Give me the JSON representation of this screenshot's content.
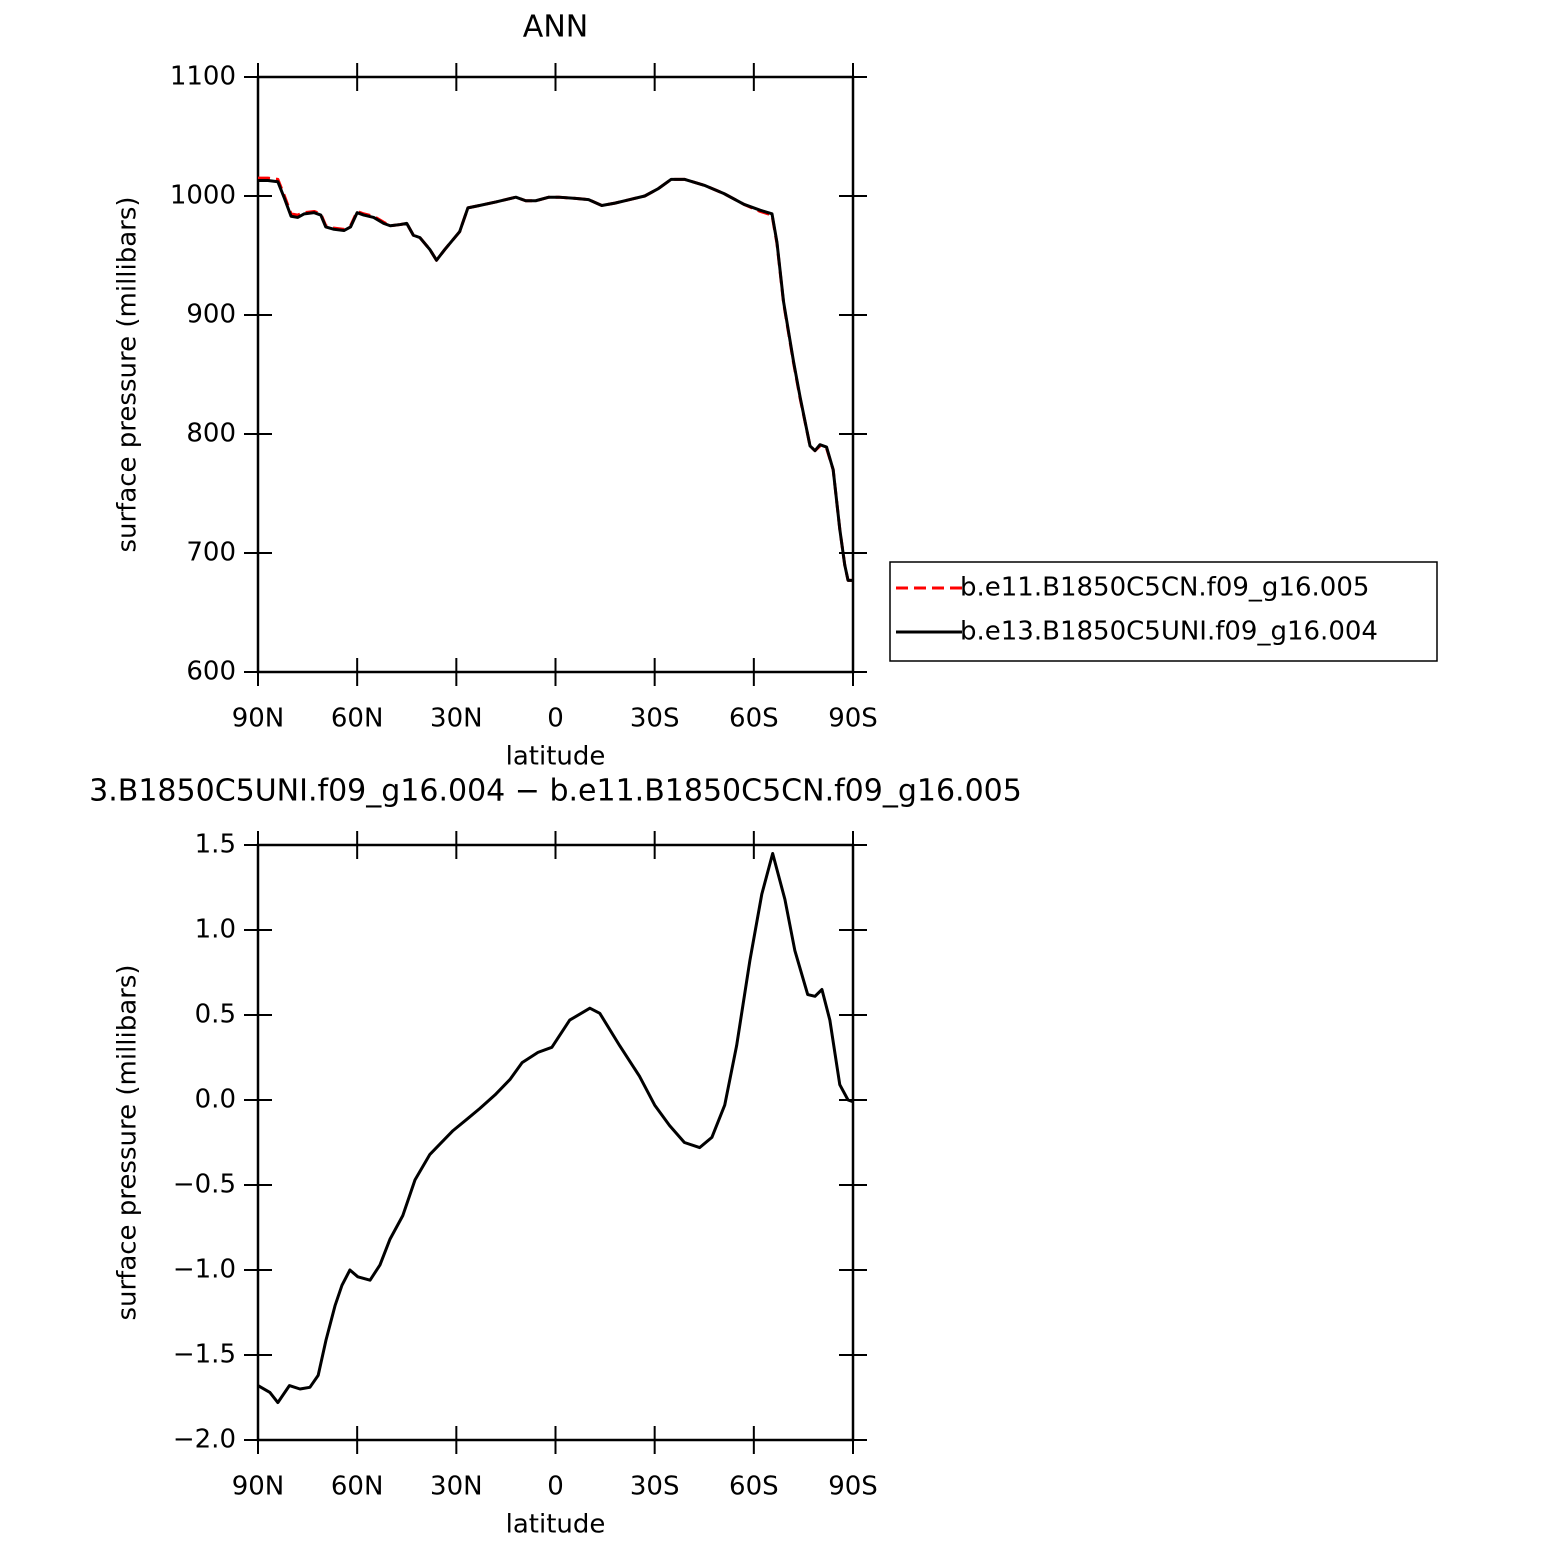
{
  "chart_data": [
    {
      "type": "line",
      "title": "ANN",
      "xlabel": "latitude",
      "ylabel": "surface pressure (millibars)",
      "x": [
        90,
        87,
        84,
        82,
        80,
        78,
        76,
        73,
        71,
        69.5,
        67,
        64,
        62,
        60,
        58,
        55,
        52,
        50,
        47,
        45,
        43,
        41,
        38,
        36,
        33.5,
        29,
        26.5,
        23,
        18,
        15,
        12,
        9,
        6,
        2,
        -1,
        -6,
        -10,
        -14,
        -18,
        -22.5,
        -27,
        -31,
        -35,
        -39,
        -45,
        -51,
        -57,
        -62,
        -65.5,
        -67,
        -69,
        -72,
        -74,
        -77,
        -78.5,
        -80,
        -82,
        -84,
        -86,
        -87.5,
        -88.5,
        -90
      ],
      "series": [
        {
          "name": "b.e11.B1850C5CN.f09_g16.005",
          "color": "#ff0000",
          "dash": true,
          "values": [
            1015,
            1015,
            1014,
            1000,
            985,
            984,
            986,
            987,
            985,
            975,
            973,
            972,
            975,
            987,
            985,
            983,
            978,
            975,
            976,
            977,
            967,
            965,
            955,
            946,
            955,
            970,
            990,
            992,
            995,
            997,
            999,
            996,
            996,
            999,
            999,
            998,
            997,
            992,
            994,
            997,
            1000,
            1006,
            1014,
            1014,
            1009,
            1002,
            993,
            987,
            984,
            960,
            910,
            860,
            830,
            790,
            786,
            790,
            788,
            770,
            720,
            690,
            677,
            677
          ]
        },
        {
          "name": "b.e13.B1850C5UNI.f09_g16.004",
          "color": "#000000",
          "dash": false,
          "values": [
            1013,
            1013,
            1012,
            998,
            983,
            982,
            985,
            986,
            984,
            974,
            972,
            971,
            974,
            986,
            984,
            982,
            977,
            975,
            976,
            977,
            967,
            965,
            955,
            946,
            955,
            970,
            990,
            992,
            995,
            997,
            999,
            996,
            996,
            999,
            999,
            998,
            997,
            992,
            994,
            997,
            1000,
            1006,
            1014,
            1014,
            1009,
            1002,
            993,
            988,
            985,
            961,
            911,
            861,
            831,
            790,
            786,
            791,
            789,
            770,
            720,
            690,
            677,
            677
          ]
        }
      ],
      "xlim": [
        90,
        -90
      ],
      "xticks": [
        {
          "value": 90,
          "label": "90N"
        },
        {
          "value": 60,
          "label": "60N"
        },
        {
          "value": 30,
          "label": "30N"
        },
        0,
        {
          "value": -30,
          "label": "30S"
        },
        {
          "value": -60,
          "label": "60S"
        },
        {
          "value": -90,
          "label": "90S"
        }
      ],
      "ylim": [
        600,
        1100
      ],
      "yticks": [
        600,
        700,
        800,
        900,
        1000,
        1100
      ],
      "legend_position": "right"
    },
    {
      "type": "line",
      "title": "3.B1850C5UNI.f09_g16.004 − b.e11.B1850C5CN.f09_g16.005",
      "xlabel": "latitude",
      "ylabel": "surface pressure (millibars)",
      "x": [
        90,
        86.4,
        84,
        80.5,
        77.3,
        74.3,
        71.8,
        69.4,
        66.7,
        64.6,
        62.2,
        59.8,
        56.1,
        53.1,
        50.1,
        46.2,
        42.5,
        38,
        35,
        31,
        26.6,
        22.9,
        18.3,
        13.8,
        10.1,
        5.3,
        1.1,
        -4.3,
        -10.4,
        -13.4,
        -19.4,
        -25.4,
        -30,
        -34.5,
        -39,
        -43.6,
        -47.3,
        -51.2,
        -54.8,
        -58.8,
        -62.4,
        -65.7,
        -69.4,
        -72.4,
        -76.3,
        -78.5,
        -80.6,
        -83,
        -86,
        -88.5,
        -90
      ],
      "values": [
        -1.68,
        -1.72,
        -1.78,
        -1.68,
        -1.7,
        -1.69,
        -1.62,
        -1.41,
        -1.21,
        -1.09,
        -1.0,
        -1.04,
        -1.06,
        -0.97,
        -0.82,
        -0.68,
        -0.47,
        -0.32,
        -0.26,
        -0.18,
        -0.11,
        -0.05,
        0.03,
        0.12,
        0.22,
        0.28,
        0.31,
        0.47,
        0.54,
        0.51,
        0.32,
        0.14,
        -0.03,
        -0.15,
        -0.25,
        -0.28,
        -0.22,
        -0.03,
        0.32,
        0.82,
        1.21,
        1.45,
        1.18,
        0.88,
        0.62,
        0.61,
        0.65,
        0.47,
        0.09,
        0.0,
        -0.01
      ],
      "color": "#000000",
      "xlim": [
        90,
        -90
      ],
      "xticks": [
        {
          "value": 90,
          "label": "90N"
        },
        {
          "value": 60,
          "label": "60N"
        },
        {
          "value": 30,
          "label": "30N"
        },
        0,
        {
          "value": -30,
          "label": "30S"
        },
        {
          "value": -60,
          "label": "60S"
        },
        {
          "value": -90,
          "label": "90S"
        }
      ],
      "ylim": [
        -2.0,
        1.5
      ],
      "yticks": [
        {
          "value": -2.0,
          "label": "−2.0"
        },
        {
          "value": -1.5,
          "label": "−1.5"
        },
        {
          "value": -1.0,
          "label": "−1.0"
        },
        {
          "value": -0.5,
          "label": "−0.5"
        },
        {
          "value": 0.0,
          "label": "0.0"
        },
        0.5,
        {
          "value": 1.0,
          "label": "1.0"
        },
        1.5
      ]
    }
  ]
}
